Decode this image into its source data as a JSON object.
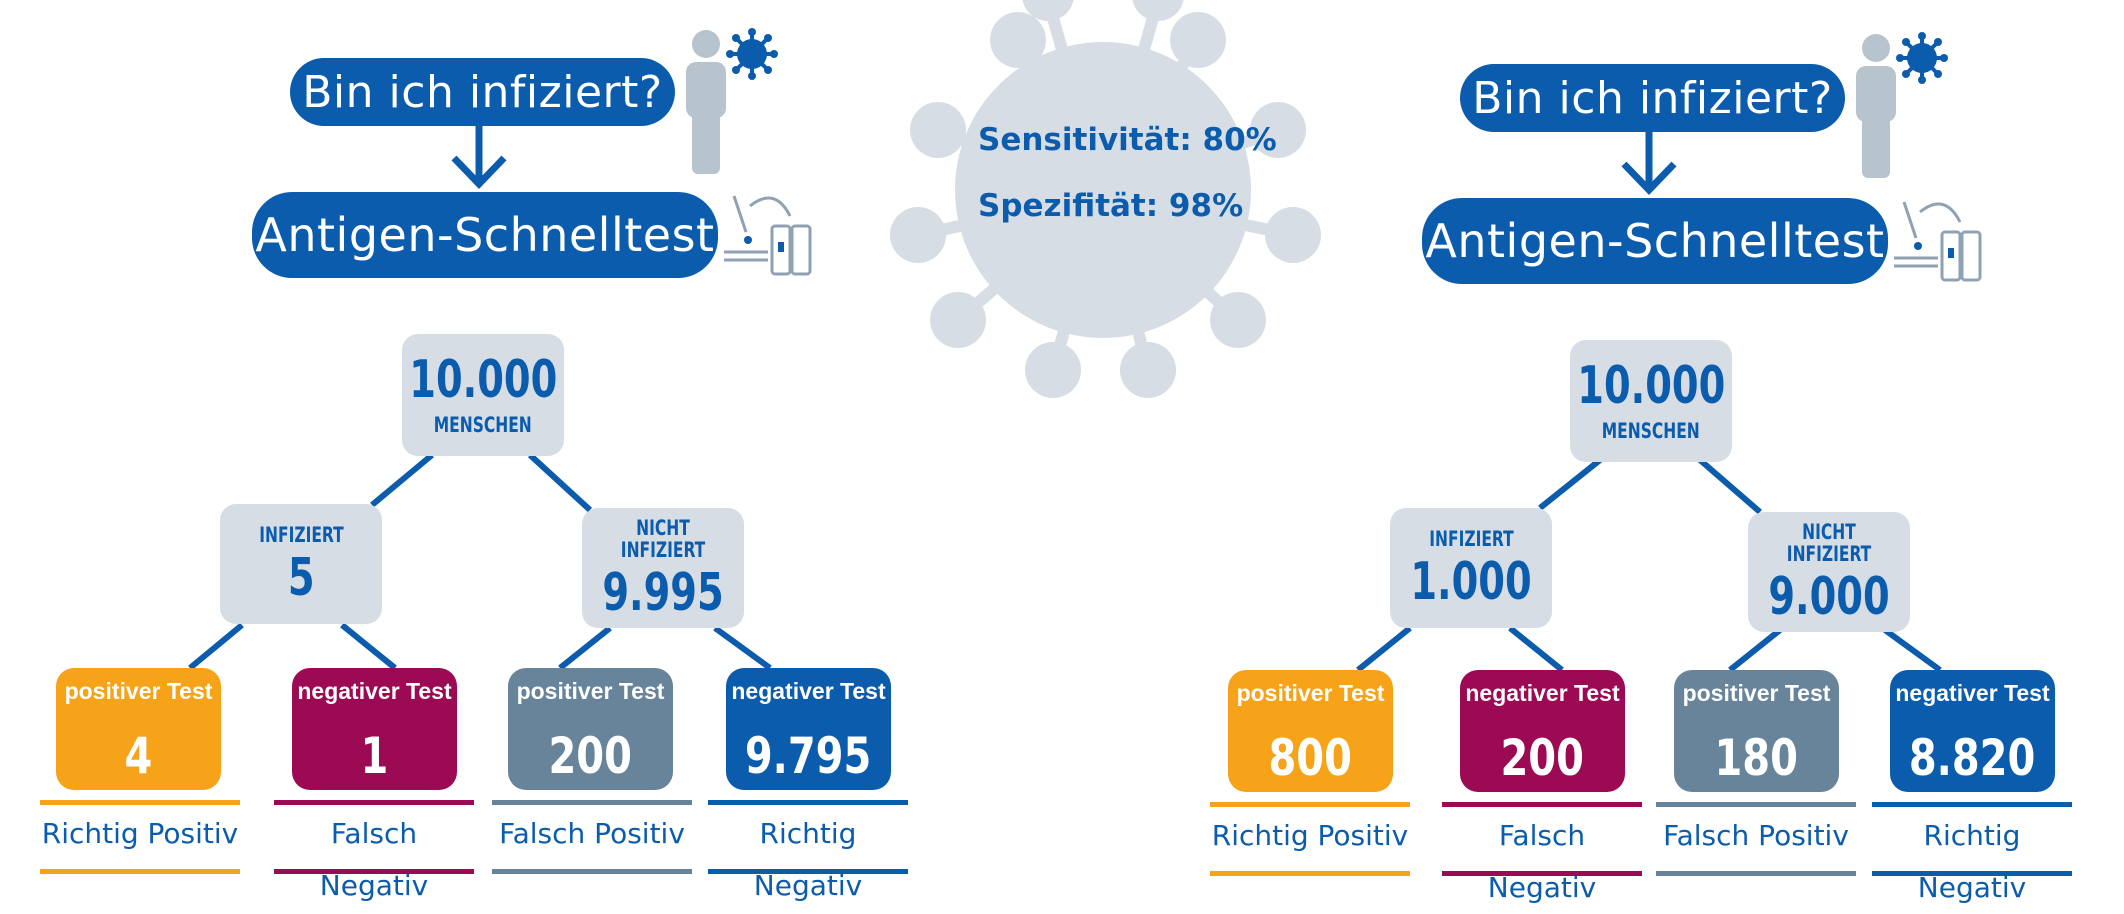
{
  "colors": {
    "blue": "#0b5cad",
    "orange": "#f6a31a",
    "magenta": "#9b0a52",
    "grey": "#67849a",
    "box": "#d7dde4"
  },
  "virus": {
    "sensitivity": "Sensitivität: 80%",
    "specificity": "Spezifität: 98%"
  },
  "left": {
    "question": "Bin ich infiziert?",
    "test": "Antigen-Schnelltest",
    "root": {
      "value": "10.000",
      "label": "MENSCHEN"
    },
    "infected": {
      "label": "INFIZIERT",
      "value": "5"
    },
    "not_infected": {
      "label": "NICHT INFIZIERT",
      "value": "9.995"
    },
    "leaves": [
      {
        "title": "positiver Test",
        "value": "4",
        "caption": "Richtig Positiv"
      },
      {
        "title": "negativer Test",
        "value": "1",
        "caption": "Falsch Negativ"
      },
      {
        "title": "positiver Test",
        "value": "200",
        "caption": "Falsch Positiv"
      },
      {
        "title": "negativer Test",
        "value": "9.795",
        "caption": "Richtig Negativ"
      }
    ]
  },
  "right": {
    "question": "Bin ich infiziert?",
    "test": "Antigen-Schnelltest",
    "root": {
      "value": "10.000",
      "label": "MENSCHEN"
    },
    "infected": {
      "label": "INFIZIERT",
      "value": "1.000"
    },
    "not_infected": {
      "label": "NICHT INFIZIERT",
      "value": "9.000"
    },
    "leaves": [
      {
        "title": "positiver Test",
        "value": "800",
        "caption": "Richtig Positiv"
      },
      {
        "title": "negativer Test",
        "value": "200",
        "caption": "Falsch Negativ"
      },
      {
        "title": "positiver Test",
        "value": "180",
        "caption": "Falsch Positiv"
      },
      {
        "title": "negativer Test",
        "value": "8.820",
        "caption": "Richtig Negativ"
      }
    ]
  },
  "icons": {
    "person": "person-icon",
    "virus": "virus-icon",
    "test_kit": "test-kit-icon",
    "arrow": "arrow-down-icon"
  }
}
